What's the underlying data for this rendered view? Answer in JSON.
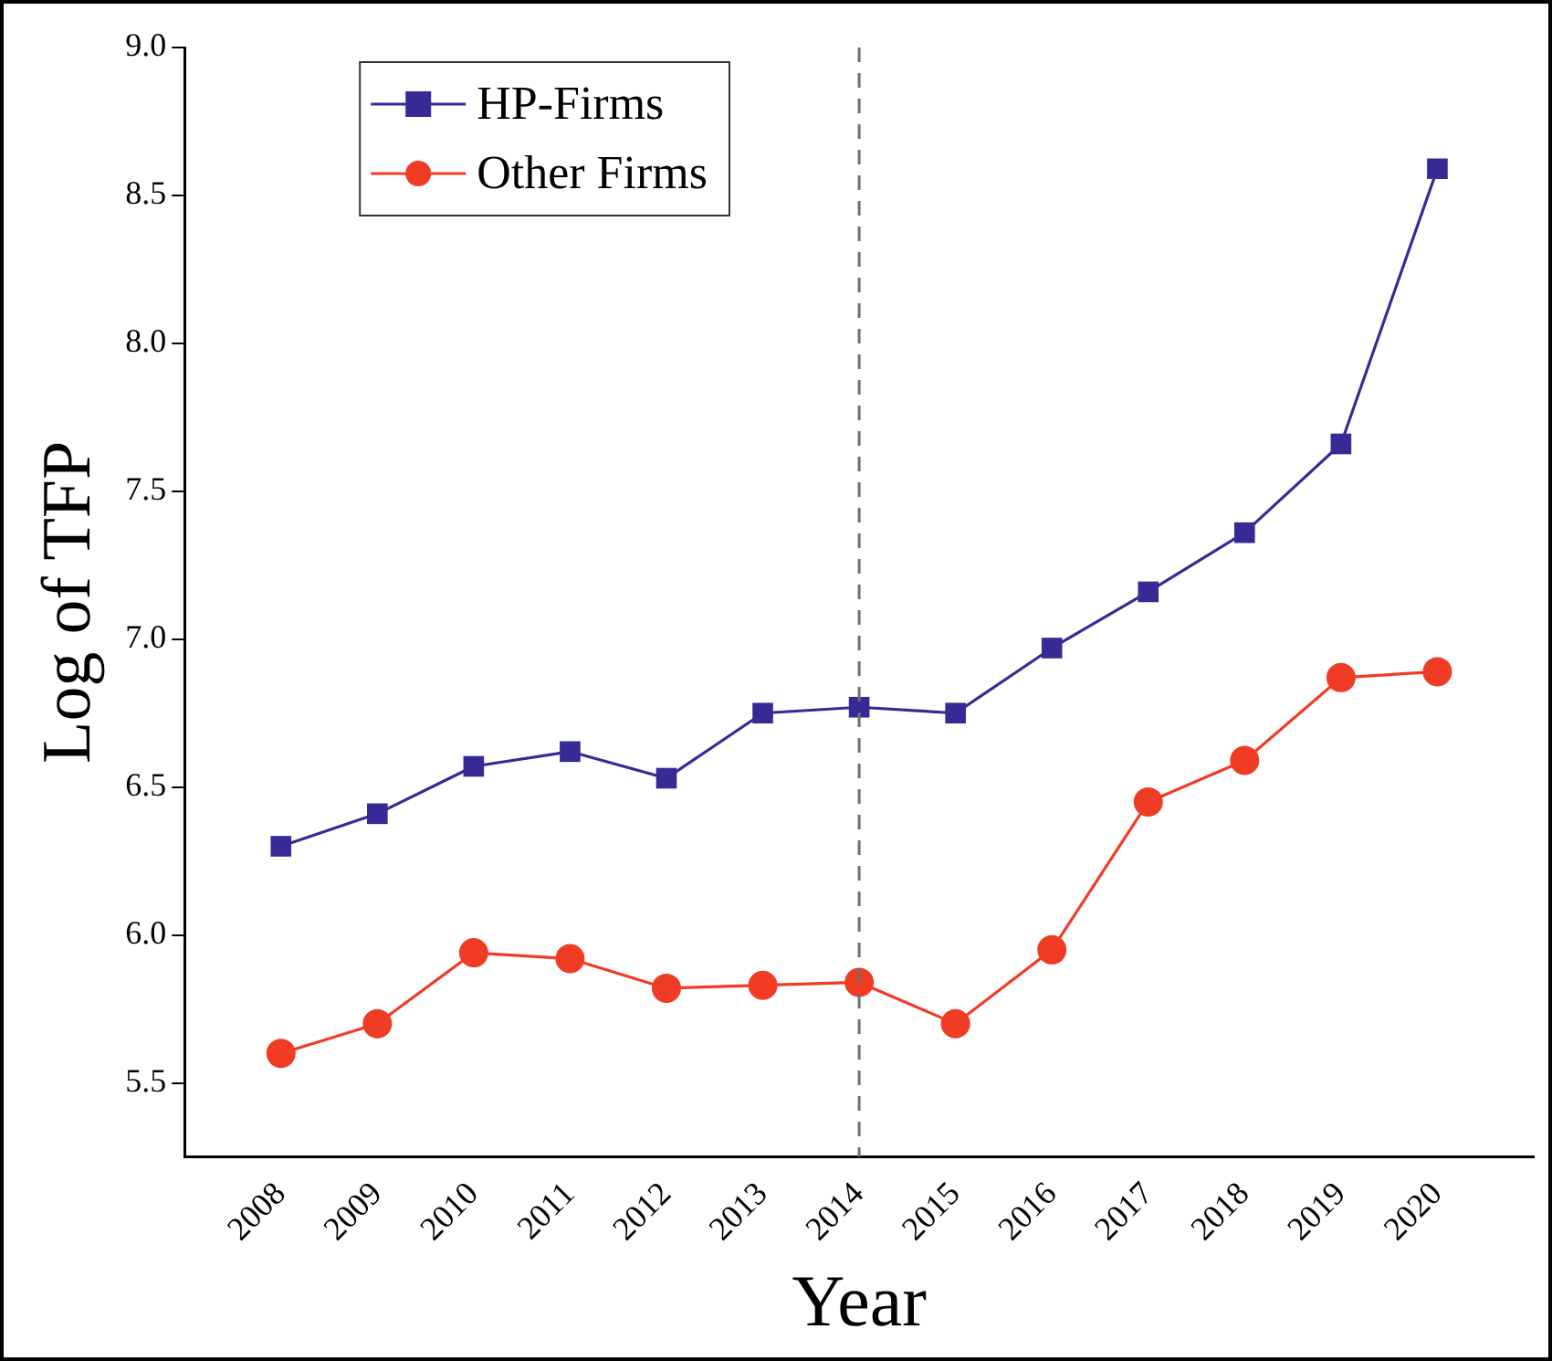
{
  "chart_data": {
    "type": "line",
    "xlabel": "Year",
    "ylabel": "Log of TFP",
    "x": [
      2008,
      2009,
      2010,
      2011,
      2012,
      2013,
      2014,
      2015,
      2016,
      2017,
      2018,
      2019,
      2020
    ],
    "series": [
      {
        "name": "HP-Firms",
        "color": "#372a96",
        "marker": "square",
        "values": [
          6.3,
          6.41,
          6.57,
          6.62,
          6.53,
          6.75,
          6.77,
          6.75,
          6.97,
          7.16,
          7.36,
          7.66,
          8.59
        ]
      },
      {
        "name": "Other Firms",
        "color": "#f03c24",
        "marker": "circle",
        "values": [
          5.6,
          5.7,
          5.94,
          5.92,
          5.82,
          5.83,
          5.84,
          5.7,
          5.95,
          6.45,
          6.59,
          6.87,
          6.89
        ]
      }
    ],
    "xlim": [
      2007,
      2021
    ],
    "xticks": [
      2008,
      2009,
      2010,
      2011,
      2012,
      2013,
      2014,
      2015,
      2016,
      2017,
      2018,
      2019,
      2020
    ],
    "ylim": [
      5.25,
      9.0
    ],
    "yticks": [
      {
        "value": 5.5,
        "label": "5.5"
      },
      {
        "value": 6.0,
        "label": "6.0"
      },
      {
        "value": 6.5,
        "label": "6.5"
      },
      {
        "value": 7.0,
        "label": "7.0"
      },
      {
        "value": 7.5,
        "label": "7.5"
      },
      {
        "value": 8.0,
        "label": "8.0"
      },
      {
        "value": 8.5,
        "label": "8.5"
      },
      {
        "value": 9.0,
        "label": "9.0"
      }
    ],
    "ref_lines": [
      {
        "axis": "x",
        "value": 2014,
        "color": "#707070",
        "line_style": "dashed"
      }
    ],
    "grid": false,
    "legend": "top left",
    "line_style": "solid"
  }
}
